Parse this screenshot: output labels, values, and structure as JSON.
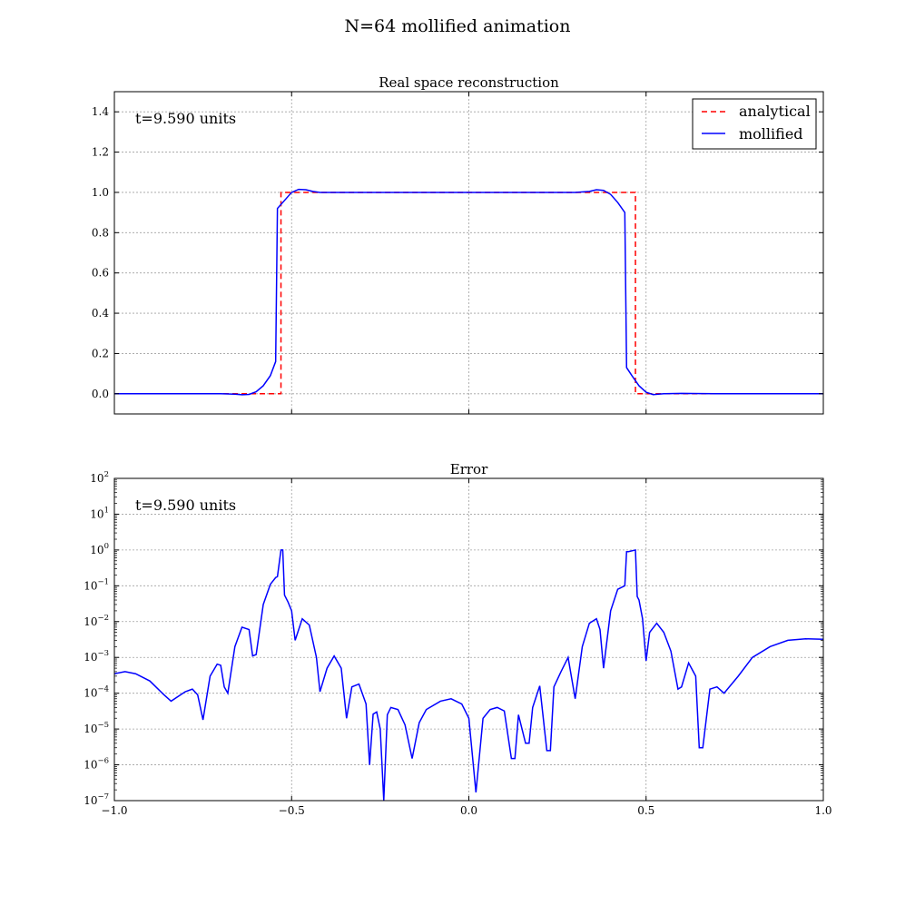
{
  "figure": {
    "title": "N=64 mollified animation"
  },
  "colors": {
    "analytical": "#ff0000",
    "mollified": "#0000ff",
    "grid": "#a0a0a0"
  },
  "chart_data": [
    {
      "type": "line",
      "title": "Real space reconstruction",
      "annotation": "t=9.590 units",
      "xlim": [
        -1.0,
        1.0
      ],
      "ylim": [
        -0.1,
        1.5
      ],
      "yticks": [
        "0.0",
        "0.2",
        "0.4",
        "0.6",
        "0.8",
        "1.0",
        "1.2",
        "1.4"
      ],
      "ytick_values": [
        0.0,
        0.2,
        0.4,
        0.6,
        0.8,
        1.0,
        1.2,
        1.4
      ],
      "xtick_values": [
        -1.0,
        -0.5,
        0.0,
        0.5,
        1.0
      ],
      "grid": true,
      "legend_position": "top-right",
      "series": [
        {
          "name": "analytical",
          "style": "dashed",
          "x": [
            -1.0,
            -0.53,
            -0.53,
            0.47,
            0.47,
            1.0
          ],
          "y": [
            0.0,
            0.0,
            1.0,
            1.0,
            0.0,
            0.0
          ]
        },
        {
          "name": "mollified",
          "style": "solid",
          "x": [
            -1.0,
            -0.8,
            -0.7,
            -0.66,
            -0.64,
            -0.62,
            -0.6,
            -0.58,
            -0.56,
            -0.545,
            -0.54,
            -0.52,
            -0.5,
            -0.48,
            -0.46,
            -0.44,
            -0.42,
            -0.4,
            -0.3,
            -0.2,
            -0.1,
            0.0,
            0.1,
            0.2,
            0.3,
            0.34,
            0.36,
            0.38,
            0.4,
            0.42,
            0.44,
            0.445,
            0.46,
            0.48,
            0.5,
            0.52,
            0.55,
            0.6,
            0.7,
            0.8,
            1.0
          ],
          "y": [
            0.0,
            0.0,
            0.0,
            -0.002,
            -0.005,
            -0.003,
            0.01,
            0.04,
            0.09,
            0.16,
            0.92,
            0.96,
            1.0,
            1.015,
            1.013,
            1.005,
            1.0,
            1.0,
            1.0,
            1.0,
            1.0,
            1.0,
            1.0,
            1.0,
            1.0,
            1.005,
            1.013,
            1.01,
            0.99,
            0.95,
            0.9,
            0.13,
            0.09,
            0.04,
            0.008,
            -0.004,
            0.0,
            0.002,
            0.0,
            0.0,
            0.0
          ]
        }
      ]
    },
    {
      "type": "line",
      "title": "Error",
      "annotation": "t=9.590 units",
      "xlim": [
        -1.0,
        1.0
      ],
      "ylim": [
        1e-07,
        100
      ],
      "yscale": "log",
      "yticks": [
        {
          "base": "10",
          "exp": "−7",
          "value": -7
        },
        {
          "base": "10",
          "exp": "−6",
          "value": -6
        },
        {
          "base": "10",
          "exp": "−5",
          "value": -5
        },
        {
          "base": "10",
          "exp": "−4",
          "value": -4
        },
        {
          "base": "10",
          "exp": "−3",
          "value": -3
        },
        {
          "base": "10",
          "exp": "−2",
          "value": -2
        },
        {
          "base": "10",
          "exp": "−1",
          "value": -1
        },
        {
          "base": "10",
          "exp": "0",
          "value": 0
        },
        {
          "base": "10",
          "exp": "1",
          "value": 1
        },
        {
          "base": "10",
          "exp": "2",
          "value": 2
        }
      ],
      "xticks": [
        "−1.0",
        "−0.5",
        "0.0",
        "0.5",
        "1.0"
      ],
      "xtick_values": [
        -1.0,
        -0.5,
        0.0,
        0.5,
        1.0
      ],
      "grid": true,
      "series": [
        {
          "name": "mollified",
          "style": "solid",
          "x": [
            -1.0,
            -0.97,
            -0.94,
            -0.9,
            -0.86,
            -0.84,
            -0.8,
            -0.78,
            -0.765,
            -0.75,
            -0.73,
            -0.71,
            -0.7,
            -0.69,
            -0.68,
            -0.66,
            -0.64,
            -0.62,
            -0.61,
            -0.6,
            -0.58,
            -0.56,
            -0.545,
            -0.54,
            -0.53,
            -0.53,
            -0.525,
            -0.52,
            -0.51,
            -0.5,
            -0.49,
            -0.47,
            -0.45,
            -0.43,
            -0.42,
            -0.4,
            -0.38,
            -0.36,
            -0.345,
            -0.33,
            -0.31,
            -0.29,
            -0.28,
            -0.27,
            -0.26,
            -0.25,
            -0.24,
            -0.23,
            -0.22,
            -0.2,
            -0.18,
            -0.16,
            -0.14,
            -0.12,
            -0.08,
            -0.05,
            -0.02,
            0.0,
            0.02,
            0.02,
            0.04,
            0.06,
            0.08,
            0.1,
            0.12,
            0.13,
            0.14,
            0.16,
            0.17,
            0.18,
            0.2,
            0.22,
            0.23,
            0.24,
            0.26,
            0.28,
            0.3,
            0.3,
            0.32,
            0.34,
            0.36,
            0.37,
            0.38,
            0.4,
            0.42,
            0.44,
            0.445,
            0.45,
            0.47,
            0.475,
            0.48,
            0.49,
            0.5,
            0.5,
            0.51,
            0.53,
            0.55,
            0.57,
            0.59,
            0.6,
            0.62,
            0.64,
            0.65,
            0.66,
            0.68,
            0.7,
            0.72,
            0.76,
            0.8,
            0.85,
            0.9,
            0.95,
            1.0
          ],
          "y": [
            0.00035,
            0.0004,
            0.00035,
            0.00022,
            9e-05,
            6e-05,
            0.00011,
            0.00013,
            9e-05,
            1.8e-05,
            0.0003,
            0.00065,
            0.0006,
            0.00015,
            0.0001,
            0.002,
            0.007,
            0.006,
            0.0011,
            0.0012,
            0.03,
            0.11,
            0.17,
            0.18,
            1.0,
            1.0,
            1.0,
            0.055,
            0.035,
            0.02,
            0.003,
            0.012,
            0.008,
            0.001,
            0.00011,
            0.0005,
            0.0011,
            0.0005,
            2e-05,
            0.00015,
            0.00018,
            5e-05,
            1e-06,
            2.6e-05,
            3e-05,
            1e-05,
            1e-07,
            2.5e-05,
            4e-05,
            3.5e-05,
            1.3e-05,
            1.5e-06,
            1.5e-05,
            3.5e-05,
            6e-05,
            7e-05,
            5e-05,
            2e-05,
            1.7e-07,
            1.7e-07,
            2e-05,
            3.5e-05,
            4e-05,
            3.2e-05,
            1.5e-06,
            1.5e-06,
            2.5e-05,
            4e-06,
            4e-06,
            4e-05,
            0.00016,
            2.5e-06,
            2.5e-06,
            0.00015,
            0.0004,
            0.001,
            7e-05,
            7e-05,
            0.002,
            0.009,
            0.012,
            0.006,
            0.0005,
            0.02,
            0.08,
            0.1,
            0.9,
            0.9,
            1.0,
            0.05,
            0.04,
            0.012,
            0.0008,
            0.0008,
            0.005,
            0.009,
            0.005,
            0.0015,
            0.00013,
            0.00015,
            0.0007,
            0.0003,
            3e-06,
            3e-06,
            0.00013,
            0.00015,
            0.0001,
            0.0003,
            0.001,
            0.002,
            0.003,
            0.0033,
            0.0032
          ]
        }
      ]
    }
  ]
}
